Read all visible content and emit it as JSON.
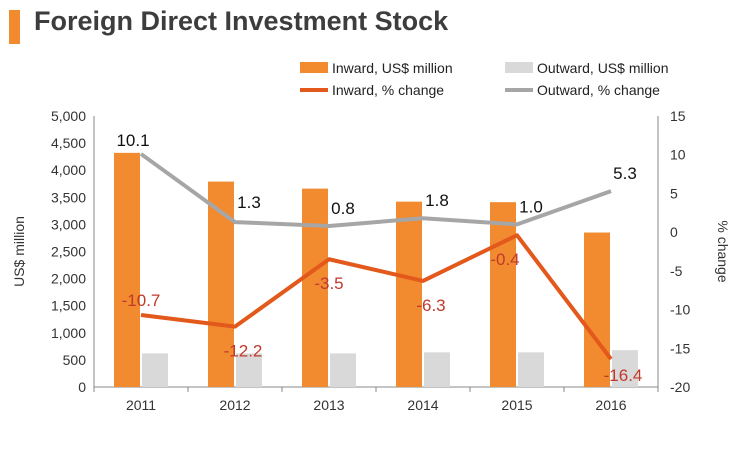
{
  "title": "Foreign Direct Investment Stock",
  "colors": {
    "inward_bar": "#f28a30",
    "outward_bar": "#d9d9d9",
    "inward_line": "#e3581b",
    "outward_line": "#a6a6a6",
    "inward_label": "#c0392b",
    "axis": "#888888",
    "title_accent": "#f28a30"
  },
  "chart_data": {
    "type": "bar",
    "categories": [
      "2011",
      "2012",
      "2013",
      "2014",
      "2015",
      "2016"
    ],
    "series": [
      {
        "name": "Inward, US$ million",
        "type": "bar",
        "axis": "left",
        "values": [
          4320,
          3790,
          3660,
          3420,
          3410,
          2850
        ]
      },
      {
        "name": "Outward, US$ million",
        "type": "bar",
        "axis": "left",
        "values": [
          620,
          620,
          620,
          640,
          640,
          680
        ]
      },
      {
        "name": "Inward, % change",
        "type": "line",
        "axis": "right",
        "values": [
          -10.7,
          -12.2,
          -3.5,
          -6.3,
          -0.4,
          -16.4
        ],
        "labels": [
          "-10.7",
          "-12.2",
          "-3.5",
          "-6.3",
          "-0.4",
          "-16.4"
        ]
      },
      {
        "name": "Outward, % change",
        "type": "line",
        "axis": "right",
        "values": [
          10.1,
          1.3,
          0.8,
          1.8,
          1.0,
          5.3
        ],
        "labels": [
          "10.1",
          "1.3",
          "0.8",
          "1.8",
          "1.0",
          "5.3"
        ]
      }
    ],
    "ylabel": "US$ million",
    "y2label": "% change",
    "ylim": [
      0,
      5000
    ],
    "y2lim": [
      -20,
      15
    ],
    "yticks": [
      "0",
      "500",
      "1,000",
      "1,500",
      "2,000",
      "2,500",
      "3,000",
      "3,500",
      "4,000",
      "4,500",
      "5,000"
    ],
    "y2ticks": [
      "-20",
      "-15",
      "-10",
      "-5",
      "0",
      "5",
      "10",
      "15"
    ],
    "grid": false,
    "legend_position": "top"
  }
}
